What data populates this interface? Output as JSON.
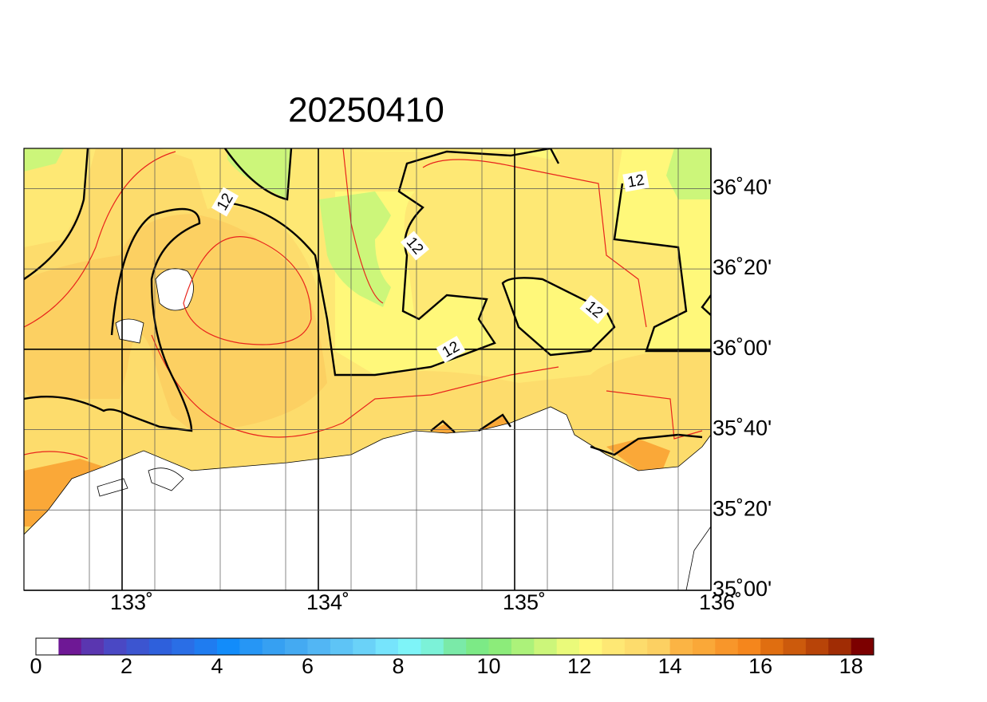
{
  "title": "20250410",
  "map": {
    "xlim": [
      132.5,
      136
    ],
    "ylim": [
      35,
      36.8333
    ],
    "xticks": [
      {
        "value": 133,
        "label": "133˚"
      },
      {
        "value": 134,
        "label": "134˚"
      },
      {
        "value": 135,
        "label": "135˚"
      },
      {
        "value": 136,
        "label": "136˚"
      }
    ],
    "yticks": [
      {
        "value": 35,
        "label": "35˚00'"
      },
      {
        "value": 35.3333,
        "label": "35˚20'"
      },
      {
        "value": 35.6667,
        "label": "35˚40'"
      },
      {
        "value": 36,
        "label": "36˚00'"
      },
      {
        "value": 36.3333,
        "label": "36˚20'"
      },
      {
        "value": 36.6667,
        "label": "36˚40'"
      }
    ]
  },
  "contour_labels": [
    12,
    12,
    12,
    12,
    12
  ],
  "colorbar": {
    "lim": [
      0,
      18.5
    ],
    "ticks": [
      0,
      2,
      4,
      6,
      8,
      10,
      12,
      14,
      16,
      18
    ],
    "colors": [
      "#ffffff",
      "#6e1895",
      "#5a36b0",
      "#4a48c4",
      "#3c55d0",
      "#2e60dc",
      "#2a6ee6",
      "#1f7cf0",
      "#128cfa",
      "#2696f5",
      "#36a0f2",
      "#44aaf2",
      "#52b6f4",
      "#5ec4f6",
      "#6ad2f8",
      "#76e4fc",
      "#7ef4f8",
      "#7cf2d8",
      "#7aeaa8",
      "#7cea86",
      "#8cec7a",
      "#acf27a",
      "#ccf67a",
      "#eafa7a",
      "#fff87a",
      "#fee874",
      "#fddc6c",
      "#fcd062",
      "#fbb444",
      "#faa838",
      "#f8962a",
      "#f5861c",
      "#e06e10",
      "#cc5a0c",
      "#b84408",
      "#a02c04",
      "#7c0000"
    ]
  }
}
